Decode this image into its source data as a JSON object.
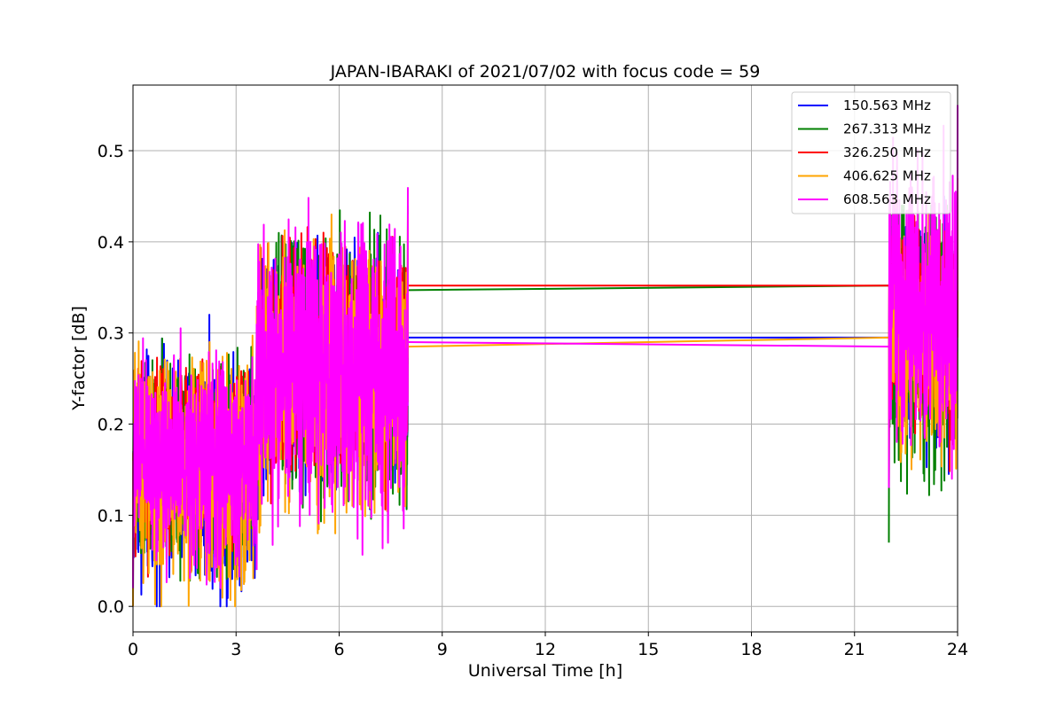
{
  "chart_data": {
    "type": "line",
    "title": "JAPAN-IBARAKI of 2021/07/02 with focus code = 59",
    "xlabel": "Universal Time [h]",
    "ylabel": "Y-factor [dB]",
    "xlim": [
      0,
      24
    ],
    "ylim": [
      -0.028,
      0.572
    ],
    "xticks": [
      0,
      3,
      6,
      9,
      12,
      15,
      18,
      21,
      24
    ],
    "xtick_labels": [
      "0",
      "3",
      "6",
      "9",
      "12",
      "15",
      "18",
      "21",
      "24"
    ],
    "yticks": [
      0.0,
      0.1,
      0.2,
      0.3,
      0.4,
      0.5
    ],
    "ytick_labels": [
      "0.0",
      "0.1",
      "0.2",
      "0.3",
      "0.4",
      "0.5"
    ],
    "grid": true,
    "legend_position": "top-right",
    "series": [
      {
        "name": "150.563 MHz",
        "color": "#0000ff",
        "segments": [
          {
            "x_start": 0.0,
            "x_end": 3.6,
            "y_center": 0.15,
            "y_min": 0.0,
            "y_max": 0.32
          },
          {
            "x_start": 3.6,
            "x_end": 8.0,
            "y_center": 0.26,
            "y_min": 0.08,
            "y_max": 0.42
          },
          {
            "x_start": 22.0,
            "x_end": 24.0,
            "y_center": 0.3,
            "y_min": 0.13,
            "y_max": 0.45
          }
        ],
        "gap": {
          "x": [
            8.0,
            22.0
          ],
          "y": [
            0.295,
            0.295
          ]
        }
      },
      {
        "name": "267.313 MHz",
        "color": "#008000",
        "segments": [
          {
            "x_start": 0.0,
            "x_end": 3.6,
            "y_center": 0.15,
            "y_min": 0.01,
            "y_max": 0.31
          },
          {
            "x_start": 3.6,
            "x_end": 8.0,
            "y_center": 0.26,
            "y_min": 0.07,
            "y_max": 0.44
          },
          {
            "x_start": 22.0,
            "x_end": 24.0,
            "y_center": 0.29,
            "y_min": 0.07,
            "y_max": 0.44
          }
        ],
        "gap": {
          "x": [
            8.0,
            22.0
          ],
          "y": [
            0.347,
            0.352
          ]
        }
      },
      {
        "name": "326.250 MHz",
        "color": "#ff0000",
        "segments": [
          {
            "x_start": 0.0,
            "x_end": 3.6,
            "y_center": 0.16,
            "y_min": 0.03,
            "y_max": 0.3
          },
          {
            "x_start": 3.6,
            "x_end": 8.0,
            "y_center": 0.27,
            "y_min": 0.1,
            "y_max": 0.42
          },
          {
            "x_start": 22.0,
            "x_end": 24.0,
            "y_center": 0.3,
            "y_min": 0.13,
            "y_max": 0.43
          }
        ],
        "gap": {
          "x": [
            8.0,
            22.0
          ],
          "y": [
            0.352,
            0.352
          ]
        }
      },
      {
        "name": "406.625 MHz",
        "color": "#ffa500",
        "segments": [
          {
            "x_start": 0.0,
            "x_end": 3.6,
            "y_center": 0.15,
            "y_min": 0.0,
            "y_max": 0.33
          },
          {
            "x_start": 3.6,
            "x_end": 8.0,
            "y_center": 0.25,
            "y_min": 0.08,
            "y_max": 0.43
          },
          {
            "x_start": 22.0,
            "x_end": 24.0,
            "y_center": 0.29,
            "y_min": 0.14,
            "y_max": 0.47
          }
        ],
        "gap": {
          "x": [
            8.0,
            22.0
          ],
          "y": [
            0.285,
            0.295
          ]
        }
      },
      {
        "name": "608.563 MHz",
        "color": "#ff00ff",
        "segments": [
          {
            "x_start": 0.0,
            "x_end": 3.6,
            "y_center": 0.16,
            "y_min": 0.02,
            "y_max": 0.31
          },
          {
            "x_start": 3.6,
            "x_end": 8.0,
            "y_center": 0.26,
            "y_min": 0.04,
            "y_max": 0.46
          },
          {
            "x_start": 22.0,
            "x_end": 24.0,
            "y_center": 0.33,
            "y_min": 0.13,
            "y_max": 0.55
          }
        ],
        "gap": {
          "x": [
            8.0,
            22.0
          ],
          "y": [
            0.29,
            0.285
          ]
        }
      }
    ]
  }
}
